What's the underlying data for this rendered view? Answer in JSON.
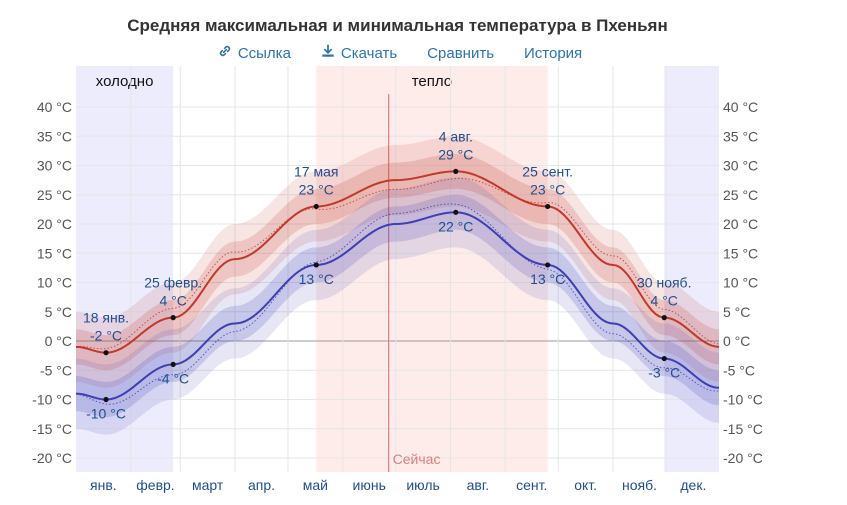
{
  "title": "Средняя максимальная и минимальная температура в Пхеньян",
  "links": {
    "link_label": "Ссылка",
    "download_label": "Скачать",
    "compare_label": "Сравнить",
    "history_label": "История"
  },
  "colors": {
    "high": "#c0392b",
    "low": "#3f3fb5",
    "cold_season": "#ececfd",
    "warm_season": "#fdecea",
    "now_line": "#d98080",
    "label": "#1f4f8f"
  },
  "chart_data": {
    "type": "line",
    "title": "Средняя максимальная и минимальная температура в Пхеньян",
    "y_ticks": [
      "40 °C",
      "35 °C",
      "30 °C",
      "25 °C",
      "20 °C",
      "15 °C",
      "10 °C",
      "5 °C",
      "0 °C",
      "-5 °C",
      "-10 °C",
      "-15 °C",
      "-20 °C"
    ],
    "y_tick_values": [
      40,
      35,
      30,
      25,
      20,
      15,
      10,
      5,
      0,
      -5,
      -10,
      -15,
      -20
    ],
    "ylim": [
      -22,
      40
    ],
    "xlim_day": [
      1,
      365
    ],
    "months": [
      "янв.",
      "февр.",
      "март",
      "апр.",
      "май",
      "июнь",
      "июль",
      "авг.",
      "сент.",
      "окт.",
      "нояб.",
      "дек."
    ],
    "month_start_days": [
      1,
      32,
      60,
      91,
      121,
      152,
      182,
      213,
      244,
      274,
      305,
      335
    ],
    "grid": true,
    "seasons": [
      {
        "label": "холодно",
        "start_day": 1,
        "end_day": 56,
        "type": "cold"
      },
      {
        "label": "тепло",
        "start_day": 137,
        "end_day": 268,
        "type": "warm"
      },
      {
        "label": "",
        "start_day": 334,
        "end_day": 365,
        "type": "cold"
      }
    ],
    "now": {
      "label": "Сейчас",
      "day": 178
    },
    "series": [
      {
        "key": "high",
        "days": [
          1,
          18,
          56,
          91,
          137,
          182,
          216,
          268,
          305,
          334,
          365
        ],
        "values": [
          -1,
          -2,
          4,
          14,
          23,
          27.5,
          29,
          23,
          13,
          4,
          -1
        ]
      },
      {
        "key": "low",
        "days": [
          1,
          18,
          56,
          91,
          137,
          182,
          216,
          268,
          305,
          334,
          365
        ],
        "values": [
          -9,
          -10,
          -4,
          3,
          13,
          20,
          22,
          13,
          3,
          -3,
          -8
        ]
      }
    ],
    "annotations": [
      {
        "day": 18,
        "value": -2,
        "series": "high",
        "date": "18 янв.",
        "text": "-2 °C",
        "pos": "above"
      },
      {
        "day": 18,
        "value": -10,
        "series": "low",
        "date": "",
        "text": "-10 °C",
        "pos": "below"
      },
      {
        "day": 56,
        "value": 4,
        "series": "high",
        "date": "25 февр.",
        "text": "4 °C",
        "pos": "above"
      },
      {
        "day": 56,
        "value": -4,
        "series": "low",
        "date": "",
        "text": "-4 °C",
        "pos": "below"
      },
      {
        "day": 137,
        "value": 23,
        "series": "high",
        "date": "17 мая",
        "text": "23 °C",
        "pos": "above"
      },
      {
        "day": 137,
        "value": 13,
        "series": "low",
        "date": "",
        "text": "13 °C",
        "pos": "below"
      },
      {
        "day": 216,
        "value": 29,
        "series": "high",
        "date": "4 авг.",
        "text": "29 °C",
        "pos": "above"
      },
      {
        "day": 216,
        "value": 22,
        "series": "low",
        "date": "",
        "text": "22 °C",
        "pos": "below"
      },
      {
        "day": 268,
        "value": 23,
        "series": "high",
        "date": "25 сент.",
        "text": "23 °C",
        "pos": "above"
      },
      {
        "day": 268,
        "value": 13,
        "series": "low",
        "date": "",
        "text": "13 °C",
        "pos": "below"
      },
      {
        "day": 334,
        "value": 4,
        "series": "high",
        "date": "30 нояб.",
        "text": "4 °C",
        "pos": "above"
      },
      {
        "day": 334,
        "value": -3,
        "series": "low",
        "date": "",
        "text": "-3 °C",
        "pos": "below"
      }
    ]
  }
}
